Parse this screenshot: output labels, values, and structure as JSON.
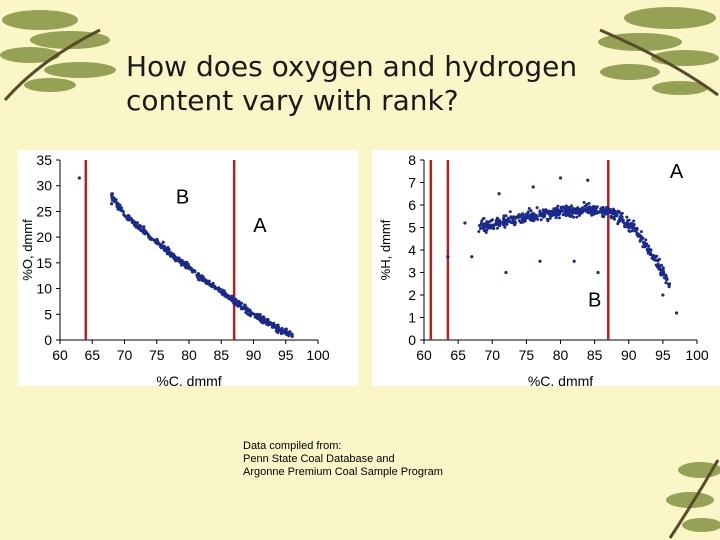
{
  "slide": {
    "title": "How does oxygen and hydrogen content vary with rank?",
    "source_note": [
      "Data compiled from:",
      "Penn State Coal Database and",
      "Argonne Premium Coal Sample Program"
    ]
  },
  "colors": {
    "background": "#fbf6c8",
    "pine_branch": "#8a9a4a",
    "points": "#1a2a8c",
    "rank_lines": "#b22222"
  },
  "chart_data": [
    {
      "type": "scatter",
      "title": "",
      "xlabel": "%C, dmmf",
      "ylabel": "%O, dmmf",
      "xlim": [
        60,
        100
      ],
      "ylim": [
        0,
        35
      ],
      "xticks": [
        60,
        65,
        70,
        75,
        80,
        85,
        90,
        95,
        100
      ],
      "yticks": [
        0,
        5,
        10,
        15,
        20,
        25,
        30,
        35
      ],
      "grid": false,
      "rank_lines_x": [
        64,
        87
      ],
      "annotations": [
        {
          "text": "B",
          "x": 79,
          "y": 26.5
        },
        {
          "text": "A",
          "x": 91,
          "y": 21
        }
      ],
      "trend": {
        "description": "dense band decreasing",
        "points": [
          [
            68,
            28
          ],
          [
            70,
            24.5
          ],
          [
            74,
            20
          ],
          [
            78,
            16
          ],
          [
            82,
            12
          ],
          [
            86,
            8.5
          ],
          [
            90,
            5
          ],
          [
            94,
            2
          ],
          [
            96,
            1
          ]
        ]
      },
      "outliers": [
        [
          63,
          31.5
        ],
        [
          68,
          26.5
        ],
        [
          69,
          25.5
        ],
        [
          73,
          22
        ],
        [
          76,
          19
        ],
        [
          95,
          1.5
        ],
        [
          96,
          0.7
        ]
      ]
    },
    {
      "type": "scatter",
      "title": "",
      "xlabel": "%C, dmmf",
      "ylabel": "%H, dmmf",
      "xlim": [
        60,
        100
      ],
      "ylim": [
        0,
        8
      ],
      "xticks": [
        60,
        65,
        70,
        75,
        80,
        85,
        90,
        95,
        100
      ],
      "yticks": [
        0,
        1,
        2,
        3,
        4,
        5,
        6,
        7,
        8
      ],
      "grid": false,
      "rank_lines_x": [
        61,
        63.5,
        87
      ],
      "annotations": [
        {
          "text": "A",
          "x": 97,
          "y": 7.2
        },
        {
          "text": "B",
          "x": 85,
          "y": 1.5
        }
      ],
      "trend": {
        "description": "cloud near 5-6 declining above 90",
        "points": [
          [
            68,
            5
          ],
          [
            72,
            5.3
          ],
          [
            76,
            5.5
          ],
          [
            80,
            5.7
          ],
          [
            84,
            5.8
          ],
          [
            87,
            5.7
          ],
          [
            89,
            5.4
          ],
          [
            91,
            4.9
          ],
          [
            93,
            4
          ],
          [
            95,
            3
          ],
          [
            96,
            2.3
          ]
        ]
      },
      "outliers": [
        [
          63.5,
          3.7
        ],
        [
          66,
          5.2
        ],
        [
          67,
          3.7
        ],
        [
          71,
          6.5
        ],
        [
          72,
          3
        ],
        [
          76,
          6.8
        ],
        [
          77,
          3.5
        ],
        [
          80,
          7.2
        ],
        [
          82,
          3.5
        ],
        [
          84,
          7.1
        ],
        [
          85.5,
          3
        ],
        [
          95,
          2
        ],
        [
          97,
          1.2
        ]
      ]
    }
  ]
}
